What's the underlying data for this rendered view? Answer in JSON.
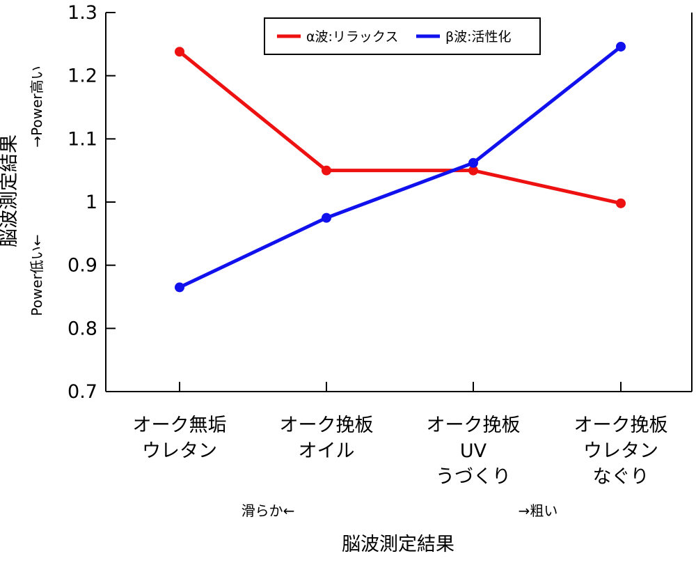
{
  "chart_data": {
    "type": "line",
    "categories": [
      [
        "オーク無垢",
        "ウレタン"
      ],
      [
        "オーク挽板",
        "オイル"
      ],
      [
        "オーク挽板",
        "UV",
        "うづくり"
      ],
      [
        "オーク挽板",
        "ウレタン",
        "なぐり"
      ]
    ],
    "series": [
      {
        "name": "α波:リラックス",
        "color": "#ee1111",
        "values": [
          1.238,
          1.05,
          1.05,
          0.998
        ]
      },
      {
        "name": "β波:活性化",
        "color": "#1111ee",
        "values": [
          0.865,
          0.975,
          1.062,
          1.246
        ]
      }
    ],
    "ylim": [
      0.7,
      1.3
    ],
    "yticks": [
      "1.3",
      "1.2",
      "1.1",
      "1",
      "0.9",
      "0.8",
      "0.7"
    ],
    "ylabel": "脳波測定結果",
    "ylabel_high": "→Power高い",
    "ylabel_low": "Power低い←",
    "xlabel": "脳波測定結果",
    "xlabel_left": "滑らか←",
    "xlabel_right": "→粗い",
    "legend_position": "top"
  }
}
